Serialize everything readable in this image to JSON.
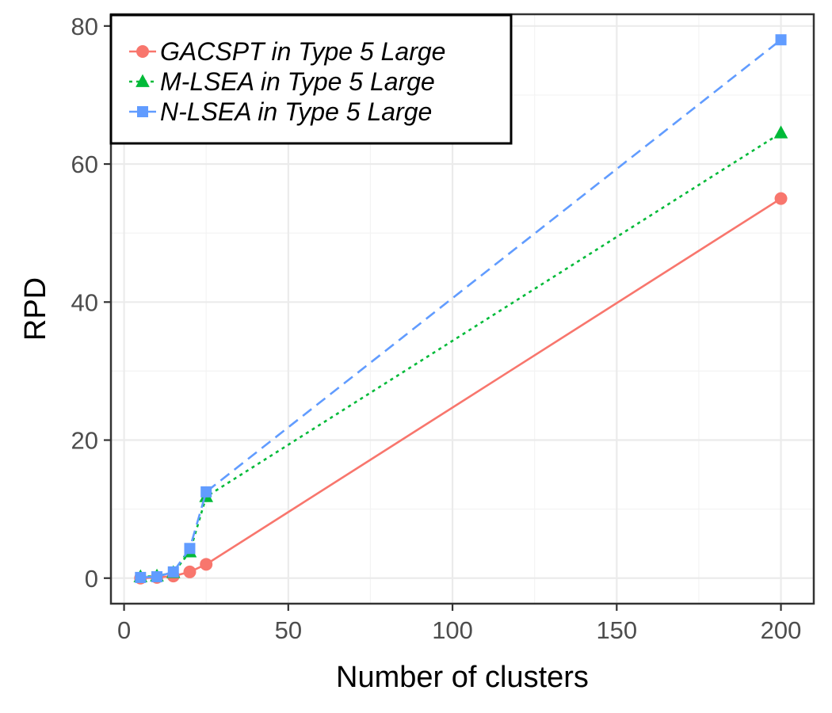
{
  "chart_data": {
    "type": "line",
    "title": "",
    "xlabel": "Number of clusters",
    "ylabel": "RPD",
    "xlim": [
      -4,
      210
    ],
    "ylim": [
      -3.7,
      81.7
    ],
    "x_ticks": [
      0,
      50,
      100,
      150,
      200
    ],
    "y_ticks": [
      0,
      20,
      40,
      60,
      80
    ],
    "x_tick_labels": [
      "0",
      "50",
      "100",
      "150",
      "200"
    ],
    "y_tick_labels": [
      "0",
      "20",
      "40",
      "60",
      "80"
    ],
    "grid": true,
    "legend_position": "top-left",
    "x": [
      5,
      10,
      15,
      20,
      25,
      200
    ],
    "series": [
      {
        "name": "GACSPT in Type 5 Large",
        "color": "#F8766D",
        "marker": "circle",
        "line_style": "solid",
        "values": [
          0.0,
          0.1,
          0.3,
          0.9,
          2.0,
          55.0
        ]
      },
      {
        "name": "M-LSEA in Type 5 Large",
        "color": "#00BA38",
        "marker": "triangle",
        "line_style": "dotted",
        "values": [
          0.2,
          0.3,
          0.8,
          3.8,
          11.8,
          64.5
        ]
      },
      {
        "name": "N-LSEA in Type 5 Large",
        "color": "#619CFF",
        "marker": "square",
        "line_style": "dashed",
        "values": [
          0.1,
          0.2,
          0.9,
          4.3,
          12.5,
          78.0
        ]
      }
    ]
  }
}
